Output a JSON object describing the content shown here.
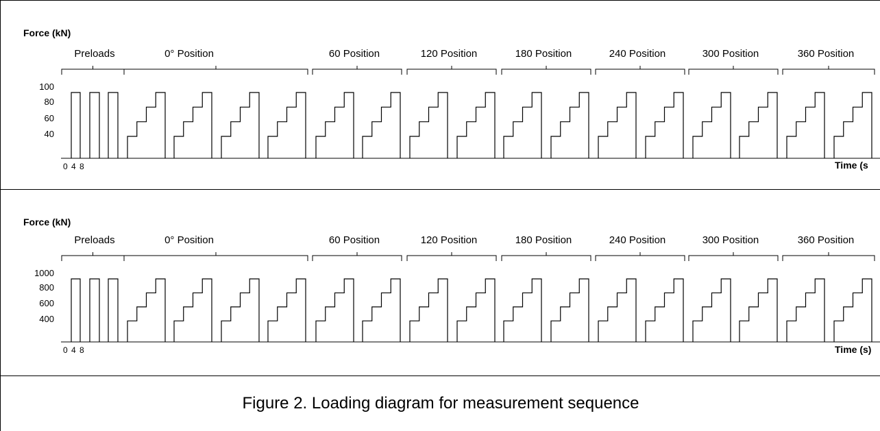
{
  "figure": {
    "caption": "Figure 2. Loading diagram for measurement sequence"
  },
  "chart_data": [
    {
      "type": "line",
      "ylabel": "Force (kN)",
      "xlabel": "Time (s",
      "yticks": [
        "100",
        "80",
        "60",
        "40"
      ],
      "xticks": [
        "0",
        "4",
        "8"
      ],
      "groups": [
        {
          "label": "Preloads",
          "kind": "preload",
          "count": 3
        },
        {
          "label": "0° Position",
          "kind": "staircase",
          "count": 4
        },
        {
          "label": "60 Position",
          "kind": "staircase",
          "count": 2
        },
        {
          "label": "120 Position",
          "kind": "staircase",
          "count": 2
        },
        {
          "label": "180 Position",
          "kind": "staircase",
          "count": 2
        },
        {
          "label": "240 Position",
          "kind": "staircase",
          "count": 2
        },
        {
          "label": "300 Position",
          "kind": "staircase",
          "count": 2
        },
        {
          "label": "360 Position",
          "kind": "staircase",
          "count": 2
        }
      ],
      "preload_value": 90,
      "step_levels": [
        30,
        50,
        70,
        90
      ]
    },
    {
      "type": "line",
      "ylabel": "Force (kN)",
      "xlabel": "Time (s)",
      "yticks": [
        "1000",
        "800",
        "600",
        "400"
      ],
      "xticks": [
        "0",
        "4",
        "8"
      ],
      "groups": [
        {
          "label": "Preloads",
          "kind": "preload",
          "count": 3
        },
        {
          "label": "0° Position",
          "kind": "staircase",
          "count": 4
        },
        {
          "label": "60 Position",
          "kind": "staircase",
          "count": 2
        },
        {
          "label": "120 Position",
          "kind": "staircase",
          "count": 2
        },
        {
          "label": "180 Position",
          "kind": "staircase",
          "count": 2
        },
        {
          "label": "240 Position",
          "kind": "staircase",
          "count": 2
        },
        {
          "label": "300 Position",
          "kind": "staircase",
          "count": 2
        },
        {
          "label": "360 Position",
          "kind": "staircase",
          "count": 2
        }
      ],
      "preload_value": 900,
      "step_levels": [
        300,
        500,
        700,
        900
      ]
    }
  ]
}
